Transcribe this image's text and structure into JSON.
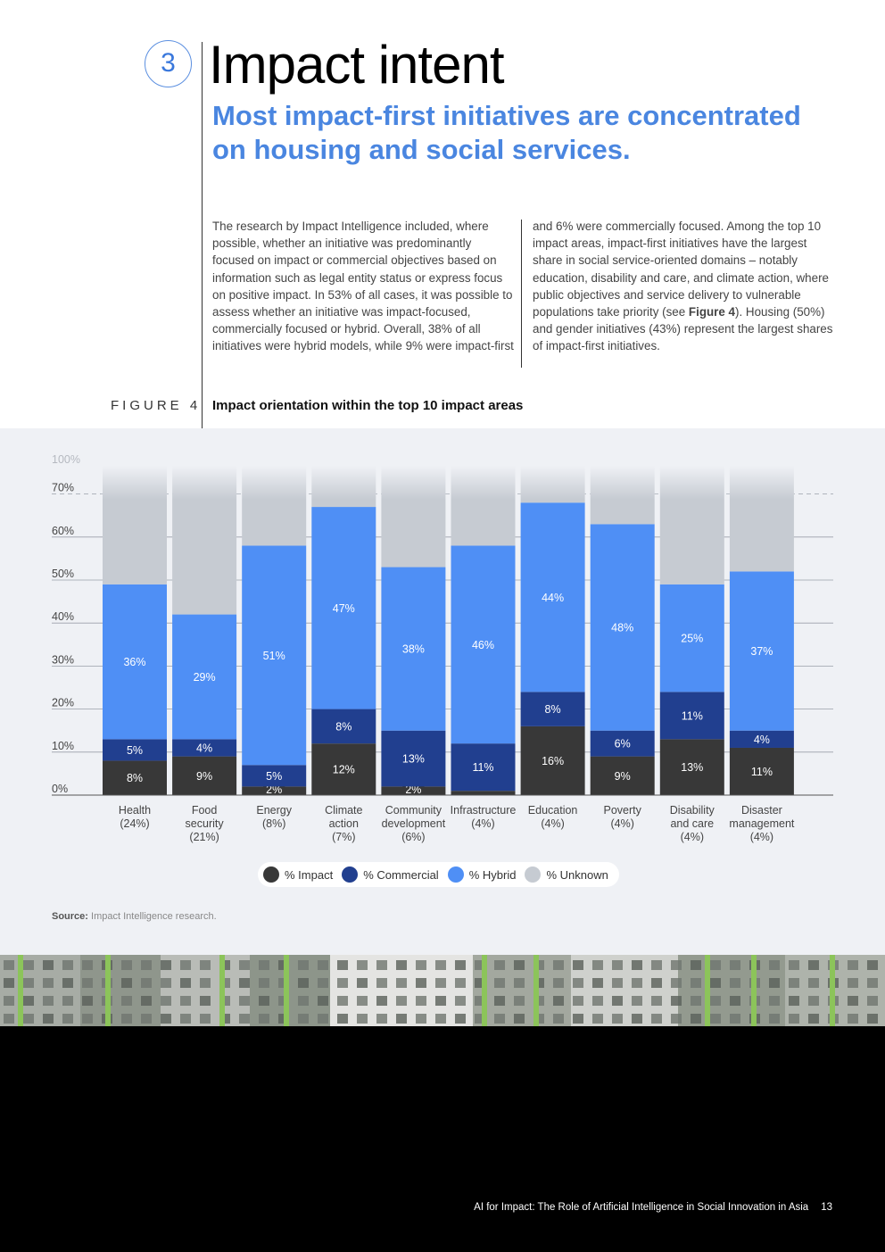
{
  "header": {
    "section_number": "3",
    "title": "Impact intent",
    "subtitle": "Most impact-first initiatives are concentrated on housing and social services."
  },
  "body": {
    "left": "The research by Impact Intelligence included, where possible, whether an initiative was predominantly focused on impact or commercial objectives based on information such as legal entity status or express focus on positive impact. In 53% of all cases, it was possible to assess whether an initiative was impact-focused, commercially focused or hybrid. Overall, 38% of all initiatives were hybrid models, while 9% were impact-first",
    "right_before_ref": "and 6% were commercially focused. Among the top 10 impact areas, impact-first initiatives have the largest share in social service-oriented domains – notably education, disability and care, and climate action, where public objectives and service delivery to vulnerable populations take priority (see ",
    "right_ref": "Figure 4",
    "right_after_ref": "). Housing (50%) and gender initiatives (43%) represent the largest shares of impact-first initiatives."
  },
  "figure": {
    "label": "FIGURE 4",
    "title": "Impact orientation within the top 10 impact areas"
  },
  "chart_data": {
    "type": "bar",
    "stacked": true,
    "title": "Impact orientation within the top 10 impact areas",
    "categories": [
      [
        "Health",
        "(24%)"
      ],
      [
        "Food",
        "security",
        "(21%)"
      ],
      [
        "Energy",
        "(8%)"
      ],
      [
        "Climate",
        "action",
        "(7%)"
      ],
      [
        "Community",
        "development",
        "(6%)"
      ],
      [
        "Infrastructure",
        "(4%)"
      ],
      [
        "Education",
        "(4%)"
      ],
      [
        "Poverty",
        "(4%)"
      ],
      [
        "Disability",
        "and care",
        "(4%)"
      ],
      [
        "Disaster",
        "management",
        "(4%)"
      ]
    ],
    "series": [
      {
        "name": "% Impact",
        "color": "#383838",
        "values": [
          8,
          9,
          2,
          12,
          2,
          1,
          16,
          9,
          13,
          11
        ],
        "labels": [
          "8%",
          "9%",
          "2%",
          "12%",
          "2%",
          "",
          "16%",
          "9%",
          "13%",
          "11%"
        ]
      },
      {
        "name": "% Commercial",
        "color": "#213f8f",
        "values": [
          5,
          4,
          5,
          8,
          13,
          11,
          8,
          6,
          11,
          4
        ],
        "labels": [
          "5%",
          "4%",
          "5%",
          "8%",
          "13%",
          "11%",
          "8%",
          "6%",
          "11%",
          "4%"
        ]
      },
      {
        "name": "% Hybrid",
        "color": "#4f8ff5",
        "values": [
          36,
          29,
          51,
          47,
          38,
          46,
          44,
          48,
          25,
          37
        ],
        "labels": [
          "36%",
          "29%",
          "51%",
          "47%",
          "38%",
          "46%",
          "44%",
          "48%",
          "25%",
          "37%"
        ]
      },
      {
        "name": "% Unknown",
        "color": "#c6cbd2",
        "values": [
          51,
          58,
          42,
          33,
          47,
          42,
          32,
          37,
          51,
          48
        ],
        "labels": [
          "",
          "",
          "",
          "",
          "",
          "",
          "",
          "",
          "",
          ""
        ]
      }
    ],
    "y_ticks": [
      "0%",
      "10%",
      "20%",
      "30%",
      "40%",
      "50%",
      "60%",
      "70%",
      "100%"
    ],
    "ylim": [
      0,
      100
    ],
    "axis_break": [
      70,
      100
    ],
    "grid": true,
    "legend_position": "bottom"
  },
  "source": {
    "label": "Source:",
    "text": "Impact Intelligence research."
  },
  "footer": {
    "report_bold": "AI for Impact:",
    "report_rest": "The Role of Artificial Intelligence in Social Innovation in Asia",
    "page_number": "13"
  }
}
